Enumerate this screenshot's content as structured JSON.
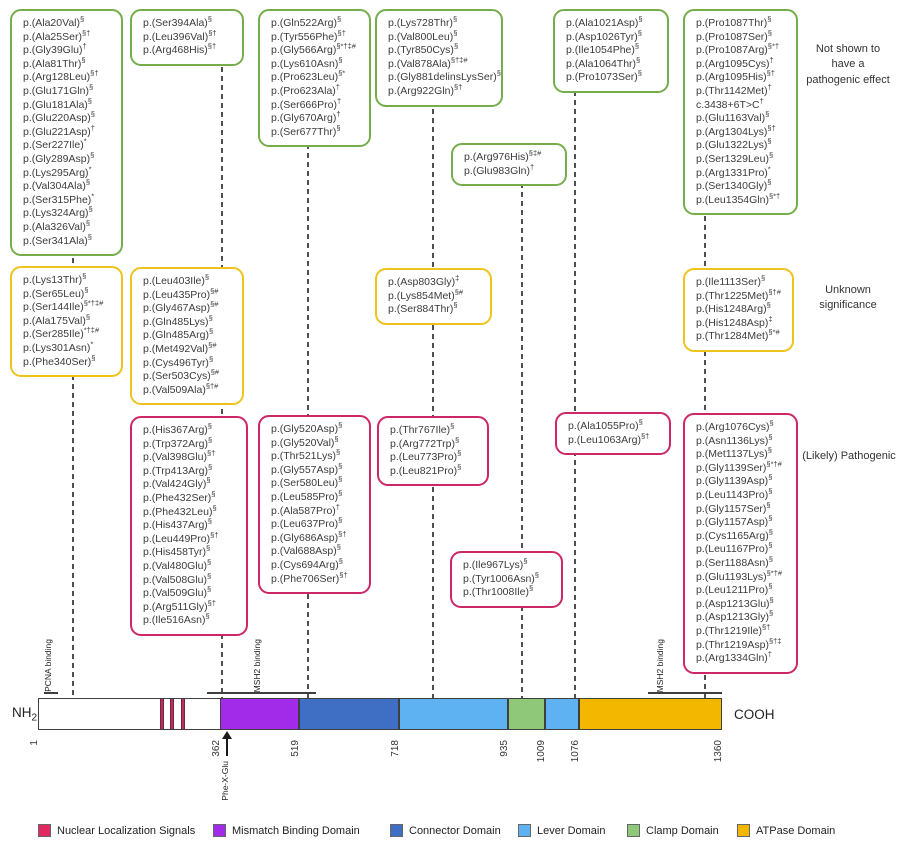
{
  "category_labels": {
    "benign": "Not shown to have a pathogenic effect",
    "unknown": "Unknown significance",
    "pathogenic": "(Likely) Pathogenic"
  },
  "colors": {
    "benign_box_border": "#76AD4C",
    "unknown_box_border": "#EFC31E",
    "pathogenic_box_border": "#CE2767",
    "dashed_line": "#4F4F4F"
  },
  "variant_boxes": [
    {
      "id": "green-1",
      "category": "benign",
      "variants": [
        {
          "n": "p.(Ala20Val)",
          "s": "§"
        },
        {
          "n": "p.(Ala25Ser)",
          "s": "§†"
        },
        {
          "n": "p.(Gly39Glu)",
          "s": "†"
        },
        {
          "n": "p.(Ala81Thr)",
          "s": "§"
        },
        {
          "n": "p.(Arg128Leu)",
          "s": "§†"
        },
        {
          "n": "p.(Glu171Gln)",
          "s": "§"
        },
        {
          "n": "p.(Glu181Ala)",
          "s": "§"
        },
        {
          "n": "p.(Glu220Asp)",
          "s": "§"
        },
        {
          "n": "p.(Glu221Asp)",
          "s": "†"
        },
        {
          "n": "p.(Ser227Ile)",
          "s": "*"
        },
        {
          "n": "p.(Gly289Asp)",
          "s": "§"
        },
        {
          "n": "p.(Lys295Arg)",
          "s": "*"
        },
        {
          "n": "p.(Val304Ala)",
          "s": "§"
        },
        {
          "n": "p.(Ser315Phe)",
          "s": "*"
        },
        {
          "n": "p.(Lys324Arg)",
          "s": "§"
        },
        {
          "n": "p.(Ala326Val)",
          "s": "§"
        },
        {
          "n": "p.(Ser341Ala)",
          "s": "§"
        }
      ]
    },
    {
      "id": "green-2",
      "category": "benign",
      "variants": [
        {
          "n": "p.(Ser394Ala)",
          "s": "§"
        },
        {
          "n": "p.(Leu396Val)",
          "s": "§†"
        },
        {
          "n": "p.(Arg468His)",
          "s": "§†"
        }
      ]
    },
    {
      "id": "green-3",
      "category": "benign",
      "variants": [
        {
          "n": "p.(Gln522Arg)",
          "s": "§"
        },
        {
          "n": "p.(Tyr556Phe)",
          "s": "§†"
        },
        {
          "n": "p.(Gly566Arg)",
          "s": "§*†‡#"
        },
        {
          "n": "p.(Lys610Asn)",
          "s": "§"
        },
        {
          "n": "p.(Pro623Leu)",
          "s": "§*"
        },
        {
          "n": "p.(Pro623Ala)",
          "s": "†"
        },
        {
          "n": "p.(Ser666Pro)",
          "s": "†"
        },
        {
          "n": "p.(Gly670Arg)",
          "s": "†"
        },
        {
          "n": "p.(Ser677Thr)",
          "s": "§"
        }
      ]
    },
    {
      "id": "green-4",
      "category": "benign",
      "variants": [
        {
          "n": "p.(Lys728Thr)",
          "s": "§"
        },
        {
          "n": "p.(Val800Leu)",
          "s": "§"
        },
        {
          "n": "p.(Tyr850Cys)",
          "s": "§"
        },
        {
          "n": "p.(Val878Ala)",
          "s": "§†‡#"
        },
        {
          "n": "p.(Gly881delinsLysSer)",
          "s": "§"
        },
        {
          "n": "p.(Arg922Gln)",
          "s": "§†"
        }
      ]
    },
    {
      "id": "green-mid",
      "category": "benign",
      "variants": [
        {
          "n": "p.(Arg976His)",
          "s": "§‡#"
        },
        {
          "n": "p.(Glu983Gln)",
          "s": "†"
        }
      ]
    },
    {
      "id": "green-5",
      "category": "benign",
      "variants": [
        {
          "n": "p.(Ala1021Asp)",
          "s": "§"
        },
        {
          "n": "p.(Asp1026Tyr)",
          "s": "§"
        },
        {
          "n": "p.(Ile1054Phe)",
          "s": "§"
        },
        {
          "n": "p.(Ala1064Thr)",
          "s": "§"
        },
        {
          "n": "p.(Pro1073Ser)",
          "s": "§"
        }
      ]
    },
    {
      "id": "green-6",
      "category": "benign",
      "variants": [
        {
          "n": "p.(Pro1087Thr)",
          "s": "§"
        },
        {
          "n": "p.(Pro1087Ser)",
          "s": "§"
        },
        {
          "n": "p.(Pro1087Arg)",
          "s": "§*†"
        },
        {
          "n": "p.(Arg1095Cys)",
          "s": "†"
        },
        {
          "n": "p.(Arg1095His)",
          "s": "§†"
        },
        {
          "n": "p.(Thr1142Met)",
          "s": "†"
        },
        {
          "n": "c.3438+6T>C",
          "s": "†"
        },
        {
          "n": "p.(Glu1163Val)",
          "s": "§"
        },
        {
          "n": "p.(Arg1304Lys)",
          "s": "§†"
        },
        {
          "n": "p.(Glu1322Lys)",
          "s": "§"
        },
        {
          "n": "p.(Ser1329Leu)",
          "s": "§"
        },
        {
          "n": "p.(Arg1331Pro)",
          "s": "*"
        },
        {
          "n": "p.(Ser1340Gly)",
          "s": "§"
        },
        {
          "n": "p.(Leu1354Gln)",
          "s": "§*†"
        }
      ]
    },
    {
      "id": "yellow-1",
      "category": "unknown",
      "variants": [
        {
          "n": "p.(Lys13Thr)",
          "s": "§"
        },
        {
          "n": "p.(Ser65Leu)",
          "s": "§"
        },
        {
          "n": "p.(Ser144Ile)",
          "s": "§*†‡#"
        },
        {
          "n": "p.(Ala175Val)",
          "s": "§"
        },
        {
          "n": "p.(Ser285Ile)",
          "s": "*†‡#"
        },
        {
          "n": "p.(Lys301Asn)",
          "s": "*"
        },
        {
          "n": "p.(Phe340Ser)",
          "s": "§"
        }
      ]
    },
    {
      "id": "yellow-2",
      "category": "unknown",
      "variants": [
        {
          "n": "p.(Leu403Ile)",
          "s": "§"
        },
        {
          "n": "p.(Leu435Pro)",
          "s": "§#"
        },
        {
          "n": "p.(Gly467Asp)",
          "s": "§#"
        },
        {
          "n": "p.(Gln485Lys)",
          "s": "§"
        },
        {
          "n": "p.(Gln485Arg)",
          "s": "§"
        },
        {
          "n": "p.(Met492Val)",
          "s": "§#"
        },
        {
          "n": "p.(Cys496Tyr)",
          "s": "§"
        },
        {
          "n": "p.(Ser503Cys)",
          "s": "§#"
        },
        {
          "n": "p.(Val509Ala)",
          "s": "§†#"
        }
      ]
    },
    {
      "id": "yellow-3",
      "category": "unknown",
      "variants": [
        {
          "n": "p.(Asp803Gly)",
          "s": "‡"
        },
        {
          "n": "p.(Lys854Met)",
          "s": "§#"
        },
        {
          "n": "p.(Ser884Thr)",
          "s": "§"
        }
      ]
    },
    {
      "id": "yellow-4",
      "category": "unknown",
      "variants": [
        {
          "n": "p.(Ile1113Ser)",
          "s": "§"
        },
        {
          "n": "p.(Thr1225Met)",
          "s": "§†#"
        },
        {
          "n": "p.(His1248Arg)",
          "s": "§"
        },
        {
          "n": "p.(His1248Asp)",
          "s": "‡"
        },
        {
          "n": "p.(Thr1284Met)",
          "s": "§*#"
        }
      ]
    },
    {
      "id": "pink-1",
      "category": "pathogenic",
      "variants": [
        {
          "n": "p.(His367Arg)",
          "s": "§"
        },
        {
          "n": "p.(Trp372Arg)",
          "s": "§"
        },
        {
          "n": "p.(Val398Glu)",
          "s": "§†"
        },
        {
          "n": "p.(Trp413Arg)",
          "s": "§"
        },
        {
          "n": "p.(Val424Gly)",
          "s": "§"
        },
        {
          "n": "p.(Phe432Ser)",
          "s": "§"
        },
        {
          "n": "p.(Phe432Leu)",
          "s": "§"
        },
        {
          "n": "p.(His437Arg)",
          "s": "§"
        },
        {
          "n": "p.(Leu449Pro)",
          "s": "§†"
        },
        {
          "n": "p.(His458Tyr)",
          "s": "§"
        },
        {
          "n": "p.(Val480Glu)",
          "s": "§"
        },
        {
          "n": "p.(Val508Glu)",
          "s": "§"
        },
        {
          "n": "p.(Val509Glu)",
          "s": "§"
        },
        {
          "n": "p.(Arg511Gly)",
          "s": "§†"
        },
        {
          "n": "p.(Ile516Asn)",
          "s": "§"
        }
      ]
    },
    {
      "id": "pink-2",
      "category": "pathogenic",
      "variants": [
        {
          "n": "p.(Gly520Asp)",
          "s": "§"
        },
        {
          "n": "p.(Gly520Val)",
          "s": "§"
        },
        {
          "n": "p.(Thr521Lys)",
          "s": "§"
        },
        {
          "n": "p.(Gly557Asp)",
          "s": "§"
        },
        {
          "n": "p.(Ser580Leu)",
          "s": "§"
        },
        {
          "n": "p.(Leu585Pro)",
          "s": "§"
        },
        {
          "n": "p.(Ala587Pro)",
          "s": "†"
        },
        {
          "n": "p.(Leu637Pro)",
          "s": "§"
        },
        {
          "n": "p.(Gly686Asp)",
          "s": "§†"
        },
        {
          "n": "p.(Val688Asp)",
          "s": "§"
        },
        {
          "n": "p.(Cys694Arg)",
          "s": "§"
        },
        {
          "n": "p.(Phe706Ser)",
          "s": "§†"
        }
      ]
    },
    {
      "id": "pink-3",
      "category": "pathogenic",
      "variants": [
        {
          "n": "p.(Thr767Ile)",
          "s": "§"
        },
        {
          "n": "p.(Arg772Trp)",
          "s": "§"
        },
        {
          "n": "p.(Leu773Pro)",
          "s": "§"
        },
        {
          "n": "p.(Leu821Pro)",
          "s": "§"
        }
      ]
    },
    {
      "id": "pink-mid",
      "category": "pathogenic",
      "variants": [
        {
          "n": "p.(Ile967Lys)",
          "s": "§"
        },
        {
          "n": "p.(Tyr1006Asn)",
          "s": "§"
        },
        {
          "n": "p.(Thr1008Ile)",
          "s": "§"
        }
      ]
    },
    {
      "id": "pink-5",
      "category": "pathogenic",
      "variants": [
        {
          "n": "p.(Ala1055Pro)",
          "s": "§"
        },
        {
          "n": "p.(Leu1063Arg)",
          "s": "§†"
        }
      ]
    },
    {
      "id": "pink-6",
      "category": "pathogenic",
      "variants": [
        {
          "n": "p.(Arg1076Cys)",
          "s": "§"
        },
        {
          "n": "p.(Asn1136Lys)",
          "s": "§"
        },
        {
          "n": "p.(Met1137Lys)",
          "s": "§"
        },
        {
          "n": "p.(Gly1139Ser)",
          "s": "§*†#"
        },
        {
          "n": "p.(Gly1139Asp)",
          "s": "§"
        },
        {
          "n": "p.(Leu1143Pro)",
          "s": "§"
        },
        {
          "n": "p.(Gly1157Ser)",
          "s": "§"
        },
        {
          "n": "p.(Gly1157Asp)",
          "s": "§"
        },
        {
          "n": "p.(Cys1165Arg)",
          "s": "§"
        },
        {
          "n": "p.(Leu1167Pro)",
          "s": "§"
        },
        {
          "n": "p.(Ser1188Asn)",
          "s": "§"
        },
        {
          "n": "p.(Glu1193Lys)",
          "s": "§*†#"
        },
        {
          "n": "p.(Leu1211Pro)",
          "s": "§"
        },
        {
          "n": "p.(Asp1213Glu)",
          "s": "§"
        },
        {
          "n": "p.(Asp1213Gly)",
          "s": "§"
        },
        {
          "n": "p.(Thr1219Ile)",
          "s": "§†"
        },
        {
          "n": "p.(Thr1219Asp)",
          "s": "§†‡"
        },
        {
          "n": "p.(Arg1334Gln)",
          "s": "†"
        }
      ]
    }
  ],
  "protein_bar": {
    "length": 1360,
    "ticks": [
      1,
      362,
      519,
      718,
      935,
      1009,
      1076,
      1360
    ],
    "terminals": {
      "left": "NH",
      "left_sub": "2",
      "right": "COOH"
    },
    "domains": [
      {
        "name": "N-terminal region",
        "color": "#FFFFFF",
        "start": 1,
        "end": 362
      },
      {
        "name": "Mismatch Binding Domain",
        "color": "#A12BE8",
        "start": 362,
        "end": 519
      },
      {
        "name": "Connector Domain",
        "color": "#3E6FC4",
        "start": 519,
        "end": 718
      },
      {
        "name": "Lever Domain",
        "color": "#5FB2F2",
        "start": 718,
        "end": 935
      },
      {
        "name": "Clamp Domain",
        "color": "#8FC878",
        "start": 935,
        "end": 1009
      },
      {
        "name": "Lever Domain",
        "color": "#5FB2F2",
        "start": 1009,
        "end": 1076
      },
      {
        "name": "ATPase Domain",
        "color": "#F3B700",
        "start": 1076,
        "end": 1360
      }
    ],
    "nls": {
      "color": "#B5325C",
      "positions": [
        243,
        263,
        285
      ]
    },
    "annotations": {
      "pcna_binding": "PCNA binding",
      "msh2_binding_left": "MSH2 binding",
      "msh2_binding_right": "MSH2 binding",
      "phe_x_glu": "Phe-X-Glu"
    }
  },
  "legend": [
    {
      "label": "Nuclear Localization Signals",
      "color": "#E22860"
    },
    {
      "label": "Mismatch Binding Domain",
      "color": "#A12BE8"
    },
    {
      "label": "Connector Domain",
      "color": "#3E6FC4"
    },
    {
      "label": "Lever Domain",
      "color": "#5FB2F2"
    },
    {
      "label": "Clamp Domain",
      "color": "#8FC878"
    },
    {
      "label": "ATPase Domain",
      "color": "#F3B700"
    }
  ]
}
